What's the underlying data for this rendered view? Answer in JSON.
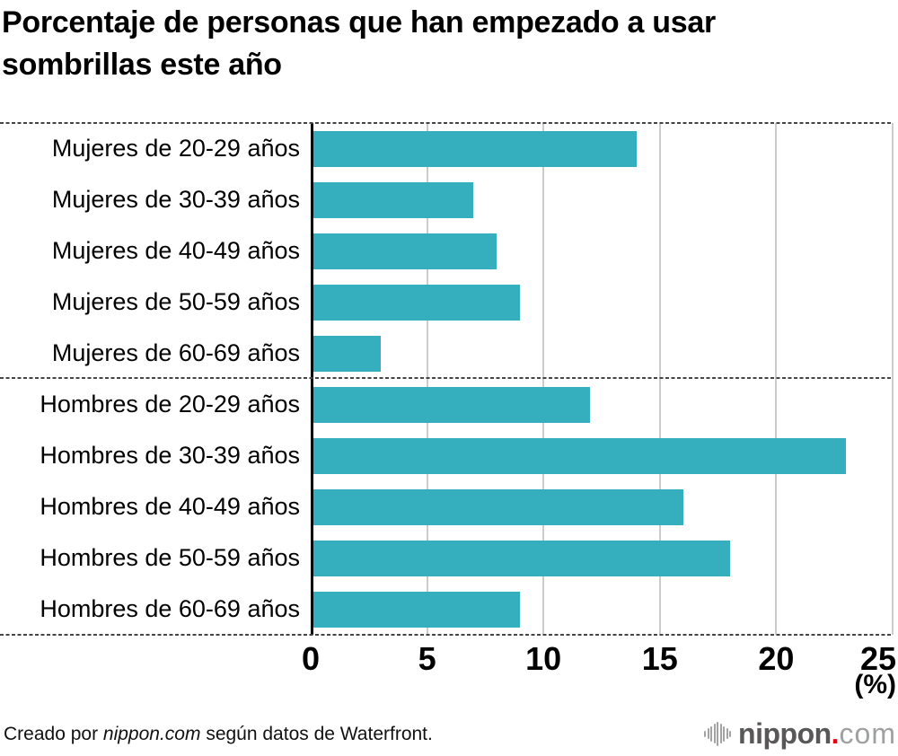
{
  "header": {
    "title_line1": "Porcentaje de personas que han empezado a usar",
    "title_line2": "sombrillas este año"
  },
  "chart_data": {
    "type": "bar",
    "orientation": "horizontal",
    "title": "Porcentaje de personas que han empezado a usar sombrillas este año",
    "categories": [
      "Mujeres de 20-29 años",
      "Mujeres de 30-39 años",
      "Mujeres de 40-49 años",
      "Mujeres de 50-59 años",
      "Mujeres de 60-69 años",
      "Hombres de 20-29 años",
      "Hombres de 30-39 años",
      "Hombres de 40-49 años",
      "Hombres de 50-59 años",
      "Hombres de 60-69 años"
    ],
    "values": [
      14,
      7,
      8,
      9,
      3,
      12,
      23,
      16,
      18,
      9
    ],
    "group_separator_after_index": 4,
    "xlabel": "(%)",
    "xlim": [
      0,
      25
    ],
    "xticks": [
      0,
      5,
      10,
      15,
      20,
      25
    ],
    "grid": true,
    "bar_color": "#35AFBD"
  },
  "footer": {
    "credit_prefix": "Creado por ",
    "credit_source": "nippon.com",
    "credit_suffix": " según datos de Waterfront."
  },
  "logo": {
    "brand": "nippon",
    "dot": ".",
    "tld": "com"
  },
  "colors": {
    "bar": "#35AFBD",
    "dashed_line": "#444444",
    "gridline": "#cccccc",
    "axis": "#000000",
    "logo_brand": "#595757",
    "logo_dot": "#e60012",
    "logo_tld": "#9fa0a0"
  }
}
